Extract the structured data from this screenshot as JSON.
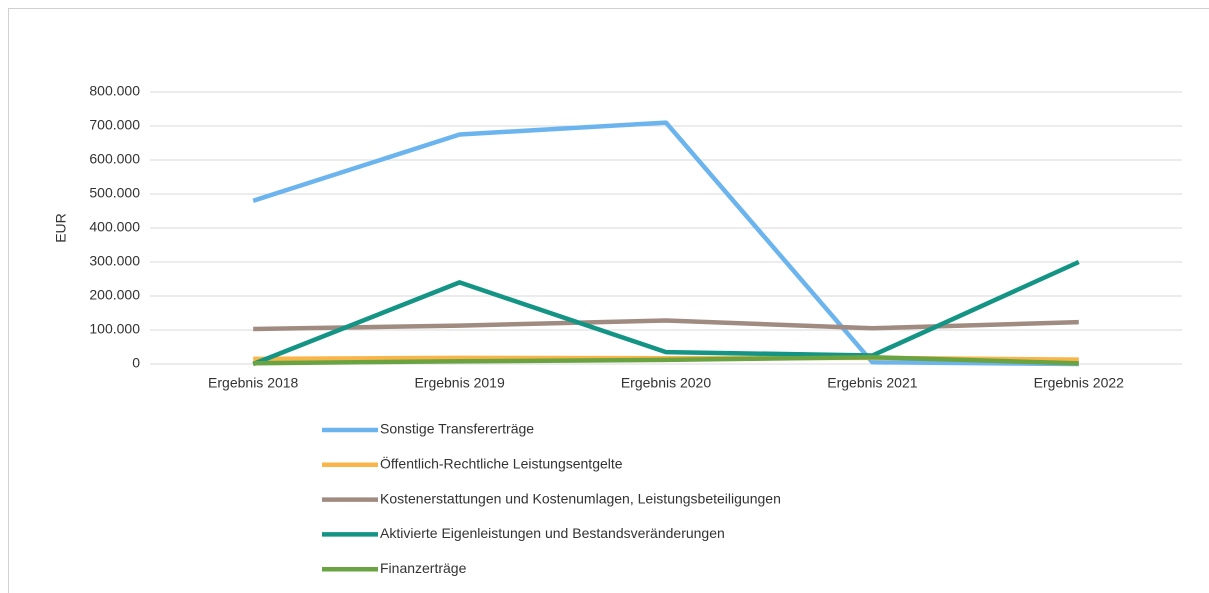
{
  "chart_data": {
    "type": "line",
    "y_label": "EUR",
    "categories": [
      "Ergebnis 2018",
      "Ergebnis 2019",
      "Ergebnis 2020",
      "Ergebnis 2021",
      "Ergebnis 2022"
    ],
    "series": [
      {
        "name": "Sonstige Transfererträge",
        "color": "#6cb4ee",
        "values": [
          480000,
          675000,
          710000,
          5000,
          0
        ]
      },
      {
        "name": "Öffentlich-Rechtliche Leistungsentgelte",
        "color": "#f9b54a",
        "values": [
          15000,
          18000,
          17000,
          18000,
          13000
        ]
      },
      {
        "name": "Kostenerstattungen und Kostenumlagen, Leistungsbeteiligungen",
        "color": "#a08b80",
        "values": [
          103000,
          113000,
          128000,
          105000,
          123000
        ]
      },
      {
        "name": "Aktivierte Eigenleistungen und Bestandsveränderungen",
        "color": "#139484",
        "values": [
          0,
          240000,
          35000,
          25000,
          300000
        ]
      },
      {
        "name": "Finanzerträge",
        "color": "#6aa342",
        "values": [
          2000,
          8000,
          12000,
          20000,
          2000
        ]
      }
    ],
    "ylim": [
      0,
      800000
    ],
    "yticks": [
      0,
      {
        "value": 100000,
        "label": "100.000"
      },
      {
        "value": 200000,
        "label": "200.000"
      },
      {
        "value": 300000,
        "label": "300.000"
      },
      {
        "value": 400000,
        "label": "400.000"
      },
      {
        "value": 500000,
        "label": "500.000"
      },
      {
        "value": 600000,
        "label": "600.000"
      },
      {
        "value": 700000,
        "label": "700.000"
      },
      {
        "value": 800000,
        "label": "800.000"
      }
    ],
    "grid": true,
    "legend": "bottom"
  }
}
